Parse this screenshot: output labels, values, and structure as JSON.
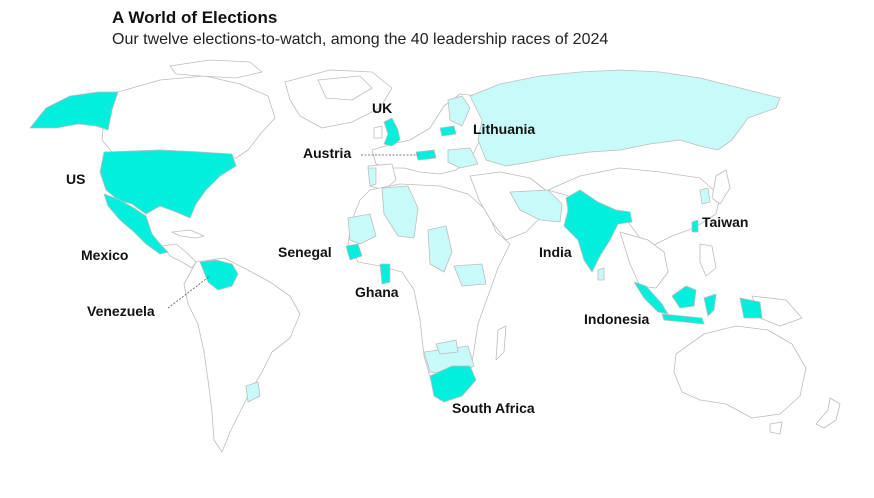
{
  "title": "A World of Elections",
  "subtitle": "Our twelve elections-to-watch, among the 40 leadership races of 2024",
  "colors": {
    "featured": "#00f0dd",
    "other_election": "#c8fafa",
    "land": "#ffffff",
    "border": "#bdbdbd",
    "leader_line": "#555555"
  },
  "legend_categories": [
    "featured-election",
    "other-2024-election",
    "no-election"
  ],
  "featured_countries": [
    {
      "name": "US"
    },
    {
      "name": "Mexico"
    },
    {
      "name": "Venezuela"
    },
    {
      "name": "UK"
    },
    {
      "name": "Austria"
    },
    {
      "name": "Lithuania"
    },
    {
      "name": "Senegal"
    },
    {
      "name": "Ghana"
    },
    {
      "name": "South Africa"
    },
    {
      "name": "India"
    },
    {
      "name": "Taiwan"
    },
    {
      "name": "Indonesia"
    }
  ]
}
